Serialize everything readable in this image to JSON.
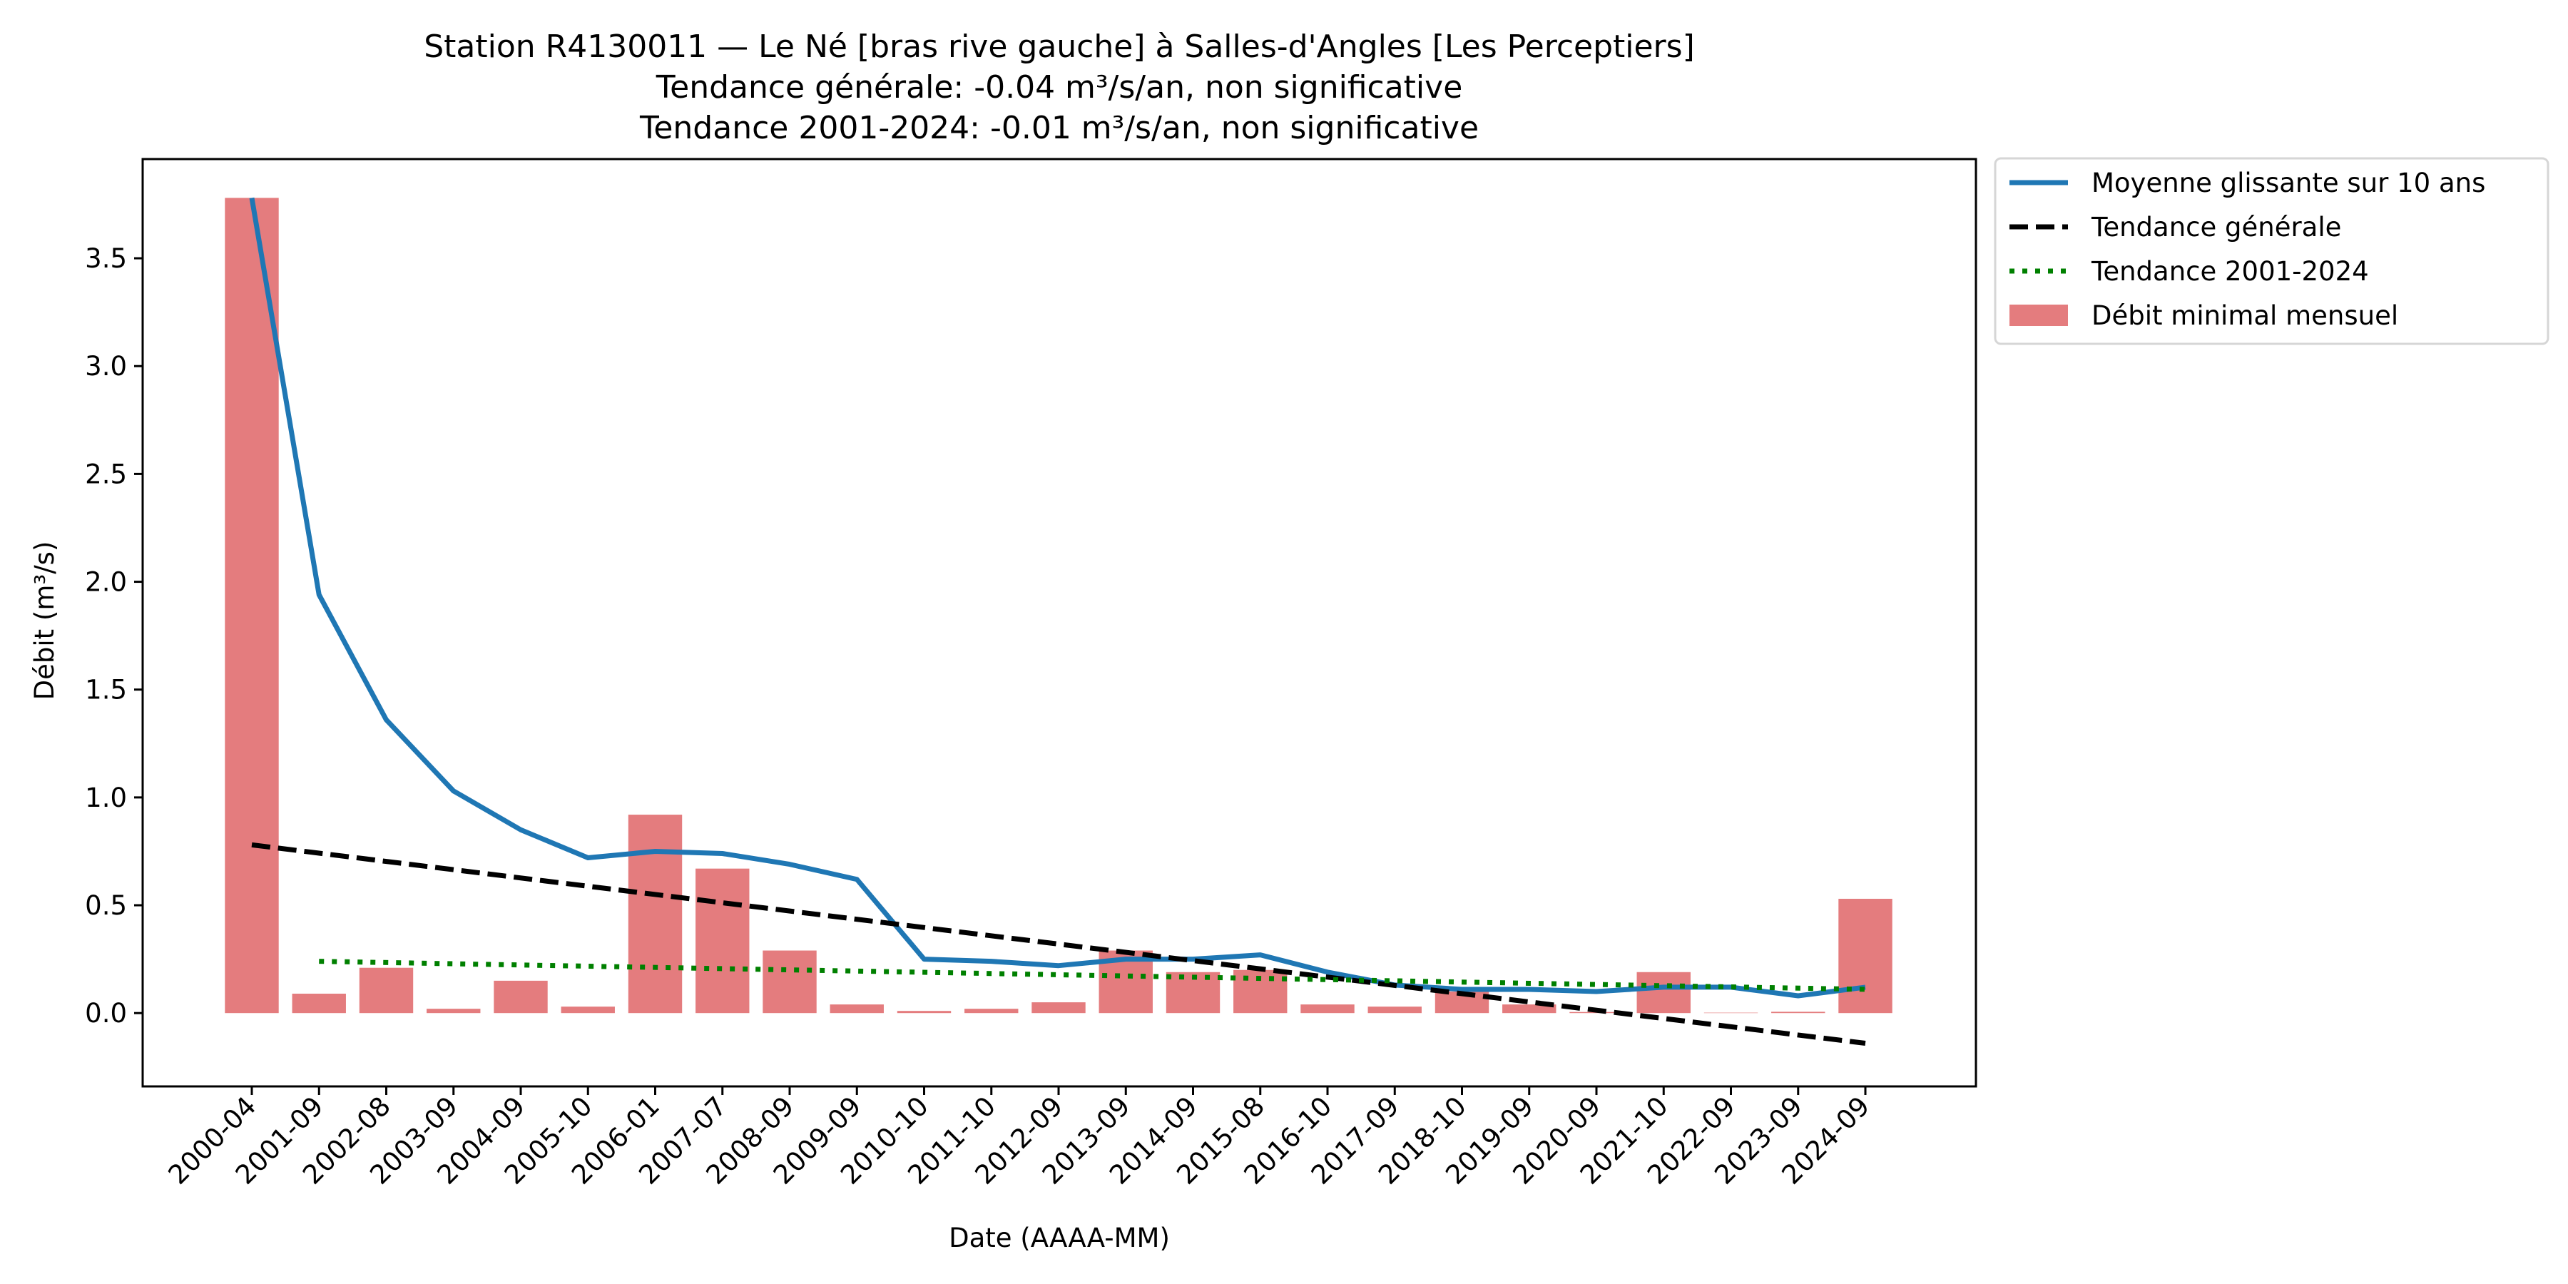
{
  "chart_data": {
    "type": "bar",
    "title": [
      "Station R4130011 — Le Né [bras rive gauche] à Salles-d'Angles [Les Perceptiers]",
      "Tendance générale: -0.04 m³/s/an, non significative",
      "Tendance 2001-2024: -0.01 m³/s/an, non significative"
    ],
    "xlabel": "Date (AAAA-MM)",
    "ylabel": "Débit (m³/s)",
    "ylim": [
      -0.34,
      3.96
    ],
    "yticks": [
      0.0,
      0.5,
      1.0,
      1.5,
      2.0,
      2.5,
      3.0,
      3.5
    ],
    "ytick_labels": [
      "0.0",
      "0.5",
      "1.0",
      "1.5",
      "2.0",
      "2.5",
      "3.0",
      "3.5"
    ],
    "grid": false,
    "legend_position": "outside-top-right",
    "categories": [
      "2000-04",
      "2001-09",
      "2002-08",
      "2003-09",
      "2004-09",
      "2005-10",
      "2006-01",
      "2007-07",
      "2008-09",
      "2009-09",
      "2010-10",
      "2011-10",
      "2012-09",
      "2013-09",
      "2014-09",
      "2015-08",
      "2016-10",
      "2017-09",
      "2018-10",
      "2019-09",
      "2020-09",
      "2021-10",
      "2022-09",
      "2023-09",
      "2024-09"
    ],
    "series": [
      {
        "name": "Débit minimal mensuel",
        "kind": "bar",
        "color": "#e47c7e",
        "values": [
          3.78,
          0.09,
          0.21,
          0.02,
          0.15,
          0.03,
          0.92,
          0.67,
          0.29,
          0.04,
          0.01,
          0.02,
          0.05,
          0.29,
          0.19,
          0.2,
          0.04,
          0.03,
          0.1,
          0.04,
          0.005,
          0.19,
          0.002,
          0.006,
          0.53
        ]
      },
      {
        "name": "Moyenne glissante sur 10 ans",
        "kind": "line",
        "color": "#1f77b4",
        "style": "solid",
        "values": [
          3.78,
          1.94,
          1.36,
          1.03,
          0.85,
          0.72,
          0.75,
          0.74,
          0.69,
          0.62,
          0.25,
          0.24,
          0.22,
          0.25,
          0.25,
          0.27,
          0.19,
          0.13,
          0.11,
          0.11,
          0.1,
          0.12,
          0.12,
          0.08,
          0.12
        ]
      },
      {
        "name": "Tendance générale",
        "kind": "line",
        "color": "#000000",
        "style": "dashed",
        "start_index": 0,
        "end_index": 24,
        "start_value": 0.78,
        "end_value": -0.14
      },
      {
        "name": "Tendance 2001-2024",
        "kind": "line",
        "color": "#008000",
        "style": "dotted",
        "start_index": 1,
        "end_index": 24,
        "start_value": 0.24,
        "end_value": 0.11
      }
    ],
    "legend": [
      {
        "label": "Moyenne glissante sur 10 ans",
        "symbol": "solid-line",
        "color": "#1f77b4"
      },
      {
        "label": "Tendance générale",
        "symbol": "dashed-line",
        "color": "#000000"
      },
      {
        "label": "Tendance 2001-2024",
        "symbol": "dotted-line",
        "color": "#008000"
      },
      {
        "label": "Débit minimal mensuel",
        "symbol": "patch",
        "color": "#e47c7e"
      }
    ]
  }
}
